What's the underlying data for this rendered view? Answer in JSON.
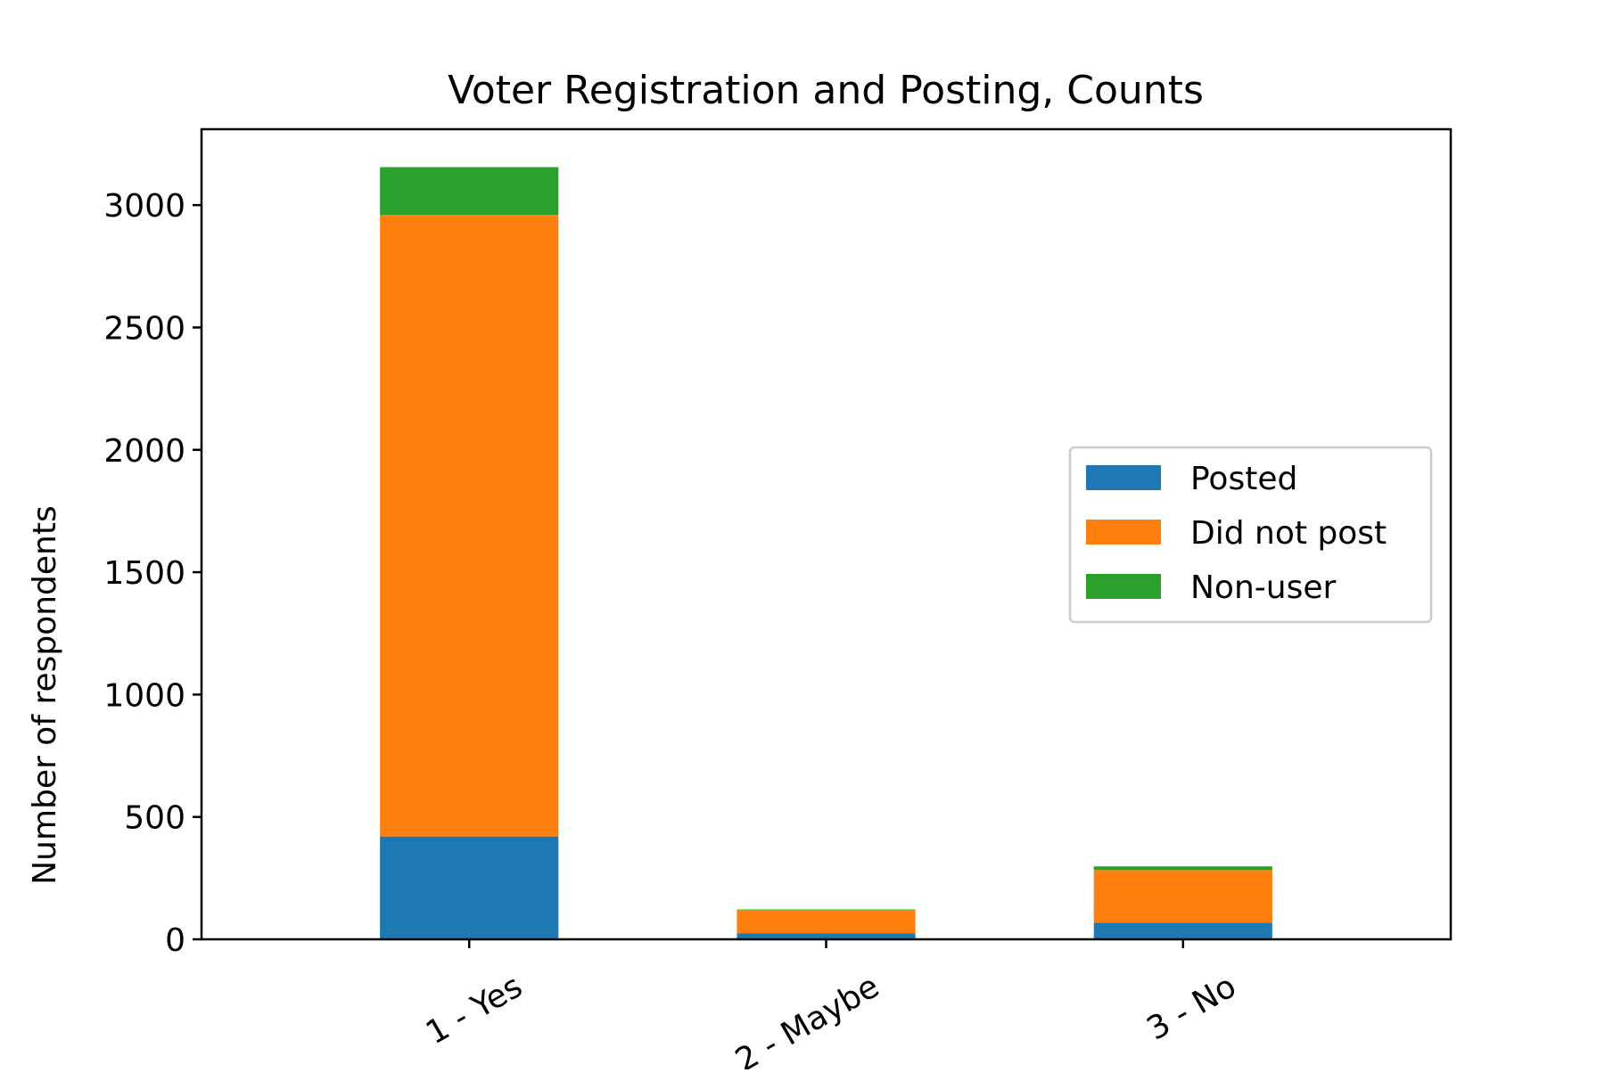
{
  "chart_data": {
    "type": "bar",
    "stacked": true,
    "title": "Voter Registration and Posting, Counts",
    "xlabel": "",
    "ylabel": "Number of respondents",
    "categories": [
      "1 - Yes",
      "2 - Maybe",
      "3 - No"
    ],
    "series": [
      {
        "name": "Posted",
        "color": "#1f77b4",
        "values": [
          420,
          25,
          68
        ]
      },
      {
        "name": "Did not post",
        "color": "#ff7f0e",
        "values": [
          2540,
          95,
          215
        ]
      },
      {
        "name": "Non-user",
        "color": "#2ca02c",
        "values": [
          195,
          2,
          15
        ]
      }
    ],
    "ylim": [
      0,
      3310
    ],
    "yticks": [
      0,
      500,
      1000,
      1500,
      2000,
      2500,
      3000
    ],
    "ytick_labels": [
      "0",
      "500",
      "1000",
      "1500",
      "2000",
      "2500",
      "3000"
    ],
    "grid": false,
    "legend_position": "center-right",
    "xtick_rotation": -30
  }
}
